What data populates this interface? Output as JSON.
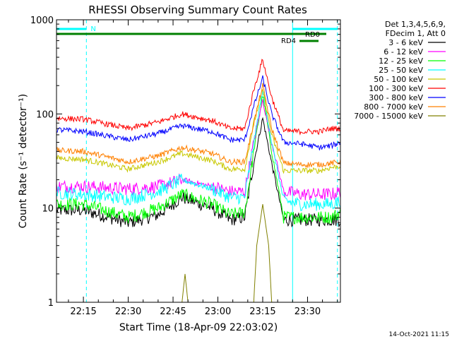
{
  "chart_data": {
    "type": "line",
    "title": "RHESSI Observing Summary Count Rates",
    "xlabel": "Start Time (18-Apr-09 22:03:02)",
    "ylabel": "Count Rate (s⁻¹ detector⁻¹)",
    "ylog": true,
    "ylim": [
      1,
      1000
    ],
    "xlim": [
      "22:06",
      "23:41"
    ],
    "x_ticks": [
      "22:15",
      "22:30",
      "22:45",
      "23:00",
      "23:15",
      "23:30"
    ],
    "y_ticks": [
      "1",
      "10",
      "100",
      "1000"
    ],
    "legend_position": "right",
    "legend_header": [
      "Det 1,3,4,5,6,9,",
      "FDecim 1, Att 0"
    ],
    "series": [
      {
        "name": "3 - 6 keV",
        "color": "#000000",
        "x": [
          "22:06",
          "22:15",
          "22:30",
          "22:40",
          "22:48",
          "22:58",
          "23:04",
          "23:09",
          "23:12",
          "23:15",
          "23:18",
          "23:22",
          "23:28",
          "23:34",
          "23:38",
          "23:41"
        ],
        "y": [
          9.5,
          9.5,
          7,
          8.5,
          13,
          10,
          7.5,
          8,
          30,
          90,
          30,
          7.5,
          7.5,
          7.5,
          7.5,
          7.5
        ]
      },
      {
        "name": "6 - 12 keV",
        "color": "#ff00ff",
        "x": [
          "22:06",
          "22:15",
          "22:30",
          "22:40",
          "22:48",
          "22:58",
          "23:04",
          "23:09",
          "23:12",
          "23:15",
          "23:18",
          "23:22",
          "23:28",
          "23:34",
          "23:38",
          "23:41"
        ],
        "y": [
          17,
          17,
          16,
          17,
          20,
          17,
          15,
          15,
          50,
          140,
          50,
          15,
          14,
          14,
          14,
          15
        ]
      },
      {
        "name": "12 - 25 keV",
        "color": "#00ff00",
        "x": [
          "22:06",
          "22:15",
          "22:30",
          "22:40",
          "22:48",
          "22:58",
          "23:04",
          "23:09",
          "23:12",
          "23:15",
          "23:18",
          "23:22",
          "23:28",
          "23:34",
          "23:38",
          "23:41"
        ],
        "y": [
          11,
          11,
          8,
          10,
          14,
          11,
          8.5,
          9,
          40,
          160,
          40,
          8,
          8,
          8,
          8,
          9
        ]
      },
      {
        "name": "25 - 50 keV",
        "color": "#00ffff",
        "x": [
          "22:06",
          "22:15",
          "22:30",
          "22:40",
          "22:48",
          "22:58",
          "23:04",
          "23:09",
          "23:12",
          "23:15",
          "23:18",
          "23:22",
          "23:28",
          "23:34",
          "23:38",
          "23:41"
        ],
        "y": [
          14.5,
          14,
          12.5,
          15,
          20,
          16,
          13,
          13,
          50,
          180,
          50,
          12,
          11,
          11,
          11,
          12
        ]
      },
      {
        "name": "50 - 100 keV",
        "color": "#c8c800",
        "x": [
          "22:06",
          "22:15",
          "22:30",
          "22:40",
          "22:48",
          "22:58",
          "23:04",
          "23:09",
          "23:12",
          "23:15",
          "23:18",
          "23:22",
          "23:28",
          "23:34",
          "23:38",
          "23:41"
        ],
        "y": [
          34,
          33,
          26,
          31,
          38,
          32,
          26,
          26,
          80,
          180,
          60,
          25,
          25,
          25,
          27,
          28
        ]
      },
      {
        "name": "100 - 300 keV",
        "color": "#ff0000",
        "x": [
          "22:06",
          "22:15",
          "22:30",
          "22:40",
          "22:48",
          "22:58",
          "23:04",
          "23:09",
          "23:12",
          "23:15",
          "23:18",
          "23:22",
          "23:28",
          "23:34",
          "23:38",
          "23:41"
        ],
        "y": [
          90,
          88,
          70,
          82,
          100,
          85,
          70,
          70,
          180,
          380,
          150,
          66,
          65,
          65,
          70,
          70
        ]
      },
      {
        "name": "300 - 800 keV",
        "color": "#0000ff",
        "x": [
          "22:06",
          "22:15",
          "22:30",
          "22:40",
          "22:48",
          "22:58",
          "23:04",
          "23:09",
          "23:12",
          "23:15",
          "23:18",
          "23:22",
          "23:28",
          "23:34",
          "23:38",
          "23:41"
        ],
        "y": [
          68,
          65,
          53,
          62,
          75,
          65,
          53,
          53,
          120,
          240,
          100,
          50,
          48,
          44,
          46,
          50
        ]
      },
      {
        "name": "800 - 7000 keV",
        "color": "#ff8000",
        "x": [
          "22:06",
          "22:15",
          "22:30",
          "22:40",
          "22:48",
          "22:58",
          "23:04",
          "23:09",
          "23:12",
          "23:15",
          "23:18",
          "23:22",
          "23:28",
          "23:34",
          "23:38",
          "23:41"
        ],
        "y": [
          41,
          40,
          31,
          36,
          44,
          38,
          31,
          31,
          80,
          200,
          70,
          30,
          29,
          29,
          30,
          31
        ]
      },
      {
        "name": "7000 - 15000 keV",
        "color": "#808000",
        "x": [
          "22:06",
          "22:48",
          "22:49",
          "22:50",
          "23:12",
          "23:13",
          "23:15",
          "23:17",
          "23:18",
          "23:41"
        ],
        "y": [
          1,
          1,
          2,
          1,
          1,
          4,
          11,
          4,
          1,
          1
        ]
      }
    ],
    "annotations": [
      {
        "label": "N",
        "color": "#00ffff",
        "x_start": "22:06",
        "x_end": "22:16"
      },
      {
        "label": "RD0",
        "color": "#008000",
        "x_start": "22:06",
        "x_end": "23:41"
      },
      {
        "label": "RD4",
        "color": "#008000",
        "x_start": "23:34",
        "x_end": "23:41"
      }
    ],
    "vertical_markers": [
      {
        "x": "22:06",
        "color": "#00ffff",
        "style": "solid"
      },
      {
        "x": "22:16",
        "color": "#00ffff",
        "style": "dashed"
      },
      {
        "x": "23:25",
        "color": "#00ffff",
        "style": "solid"
      },
      {
        "x": "23:40",
        "color": "#00ffff",
        "style": "dashed"
      }
    ],
    "footer_date": "14-Oct-2021 11:15"
  }
}
